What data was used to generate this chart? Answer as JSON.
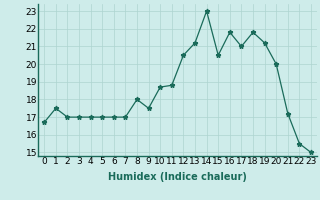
{
  "x": [
    0,
    1,
    2,
    3,
    4,
    5,
    6,
    7,
    8,
    9,
    10,
    11,
    12,
    13,
    14,
    15,
    16,
    17,
    18,
    19,
    20,
    21,
    22,
    23
  ],
  "y": [
    16.7,
    17.5,
    17.0,
    17.0,
    17.0,
    17.0,
    17.0,
    17.0,
    18.0,
    17.5,
    18.7,
    18.8,
    20.5,
    21.2,
    23.0,
    20.5,
    21.8,
    21.0,
    21.8,
    21.2,
    20.0,
    17.2,
    15.5,
    15.0
  ],
  "title": "",
  "xlabel": "Humidex (Indice chaleur)",
  "ylabel": "",
  "xlim": [
    -0.5,
    23.5
  ],
  "ylim": [
    14.8,
    23.4
  ],
  "yticks": [
    15,
    16,
    17,
    18,
    19,
    20,
    21,
    22,
    23
  ],
  "xticks": [
    0,
    1,
    2,
    3,
    4,
    5,
    6,
    7,
    8,
    9,
    10,
    11,
    12,
    13,
    14,
    15,
    16,
    17,
    18,
    19,
    20,
    21,
    22,
    23
  ],
  "line_color": "#1a6b5a",
  "marker": "*",
  "bg_color": "#ceecea",
  "grid_color": "#aed4d0",
  "xlabel_fontsize": 7,
  "tick_fontsize": 6.5
}
